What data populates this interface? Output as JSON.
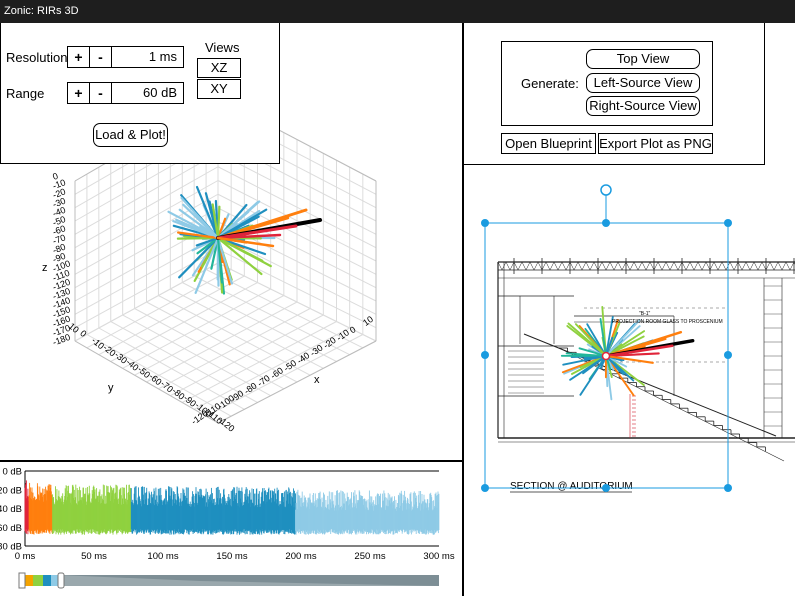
{
  "window": {
    "title": "Zonic: RIRs 3D"
  },
  "controls": {
    "resolution_label": "Resolution",
    "resolution_value": "1 ms",
    "range_label": "Range",
    "range_value": "60 dB",
    "plus": "+",
    "minus": "-",
    "views_label": "Views",
    "view_xz": "XZ",
    "view_xy": "XY",
    "load_button": "Load & Plot!"
  },
  "generate": {
    "label": "Generate:",
    "top_view": "Top View",
    "left_source_view": "Left-Source View",
    "right_source_view": "Right-Source View",
    "open_blueprint": "Open Blueprint",
    "export_png": "Export Plot as PNG"
  },
  "plot3d": {
    "z_label": "z",
    "y_label": "y",
    "x_label": "x",
    "z_ticks": [
      "0",
      "-10",
      "-20",
      "-30",
      "-40",
      "-50",
      "-60",
      "-70",
      "-80",
      "-90",
      "-100",
      "-110",
      "-120",
      "-130",
      "-140",
      "-150",
      "-160",
      "-170",
      "-180"
    ],
    "y_ticks": [
      "10",
      "0",
      "-10",
      "-20",
      "-30",
      "-40",
      "-50",
      "-60",
      "-70",
      "-80",
      "-90",
      "-100",
      "-110",
      "-120"
    ],
    "x_ticks": [
      "-120",
      "-110",
      "-100",
      "-90",
      "-80",
      "-70",
      "-60",
      "-50",
      "-40",
      "-30",
      "-20",
      "-10",
      "0",
      "10"
    ]
  },
  "blueprint": {
    "section_label": "SECTION @ AUDITORIUM",
    "note_label": "PROJECTION ROOM GLASS TO PROSCENIUM",
    "small_label": "\"B-1\""
  },
  "colors": {
    "orange": "#ff7f0e",
    "green": "#8fd13f",
    "blue": "#1f8fbf",
    "lightblue": "#8ecae6",
    "red": "#e0243a",
    "teal": "#22b59a",
    "handle": "#1a9be0"
  },
  "chart_data": {
    "type": "bar",
    "title": "",
    "xlabel": "",
    "ylabel": "",
    "xlim": [
      0,
      300
    ],
    "ylim": [
      -80,
      0
    ],
    "y_ticks": [
      "0 dB",
      "-20 dB",
      "-40 dB",
      "-60 dB",
      "-80 dB"
    ],
    "x_ticks": [
      "0 ms",
      "50 ms",
      "100 ms",
      "150 ms",
      "200 ms",
      "250 ms",
      "300 ms"
    ],
    "x_tick_values": [
      0,
      50,
      100,
      150,
      200,
      250,
      300
    ],
    "y_tick_values": [
      0,
      -20,
      -40,
      -60,
      -80
    ],
    "segments": [
      {
        "from": 0,
        "to": 3,
        "color": "#e0243a",
        "top": -10
      },
      {
        "from": 3,
        "to": 20,
        "color": "#ff7f0e",
        "top": -12
      },
      {
        "from": 20,
        "to": 77,
        "color": "#8fd13f",
        "top": -14
      },
      {
        "from": 77,
        "to": 196,
        "color": "#1f8fbf",
        "top": -16
      },
      {
        "from": 196,
        "to": 300,
        "color": "#8ecae6",
        "top": -20
      }
    ]
  }
}
